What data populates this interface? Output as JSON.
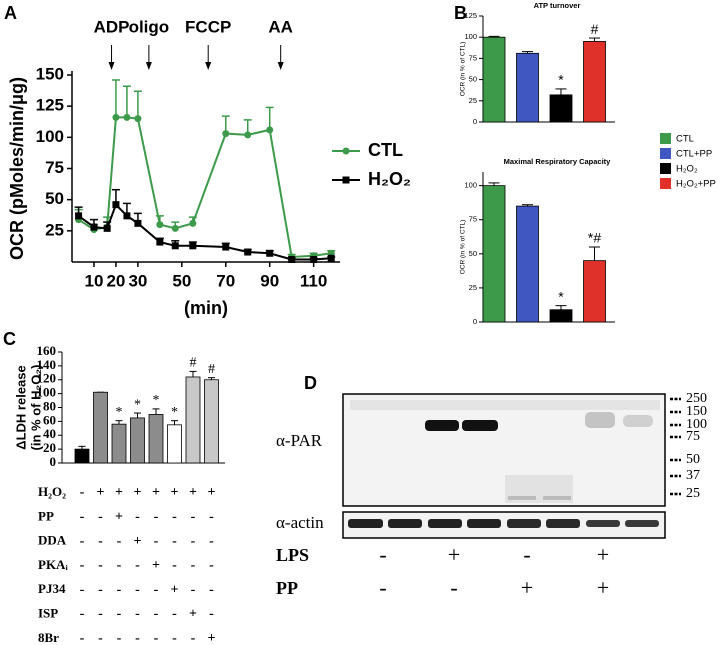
{
  "panel_labels": [
    "A",
    "B",
    "C",
    "D"
  ],
  "chart_data": [
    {
      "panel": "A",
      "type": "line",
      "ylabel": "OCR (pMoles/min/μg)",
      "xlabel": "(min)",
      "x": [
        3,
        10,
        16,
        20,
        25,
        30,
        40,
        47,
        55,
        70,
        80,
        90,
        100,
        110,
        118
      ],
      "xlim": [
        0,
        122
      ],
      "xticks": [
        10,
        20,
        30,
        50,
        70,
        90,
        110
      ],
      "ylim": [
        0,
        150
      ],
      "yticks": [
        25,
        50,
        75,
        100,
        125,
        150
      ],
      "series": [
        {
          "name": "CTL",
          "color": "#3d9a4a",
          "marker": "circle",
          "values": [
            34,
            26,
            28,
            116,
            116,
            115,
            30,
            27,
            31,
            103,
            102,
            106,
            4,
            5,
            7
          ],
          "errors": [
            8,
            4,
            8,
            30,
            25,
            22,
            7,
            5,
            5,
            14,
            12,
            18,
            2,
            2,
            2
          ]
        },
        {
          "name": "H₂O₂",
          "color": "#000000",
          "marker": "square",
          "values": [
            37,
            28,
            27,
            46,
            37,
            31,
            16,
            13,
            13,
            12,
            8,
            7,
            2,
            2,
            3
          ],
          "errors": [
            7,
            6,
            5,
            12,
            10,
            8,
            3,
            4,
            3,
            3,
            2,
            2,
            1,
            1,
            1
          ]
        }
      ],
      "annotations": [
        {
          "text": "ADP",
          "x": 18
        },
        {
          "text": "oligo",
          "x": 35
        },
        {
          "text": "FCCP",
          "x": 62
        },
        {
          "text": "AA",
          "x": 95
        }
      ],
      "legend": "right"
    },
    {
      "panel": "B",
      "type": "bar",
      "title": "ATP turnover",
      "ylabel": "OCR (in % of CTL)",
      "categories": [
        "CTL",
        "CTL+PP",
        "H₂O₂",
        "H₂O₂+PP"
      ],
      "colors": [
        "#3d9a4a",
        "#4057c2",
        "#000000",
        "#e0302a"
      ],
      "values": [
        100,
        81,
        32,
        95
      ],
      "errors": [
        1,
        2,
        7,
        4
      ],
      "ylim": [
        0,
        125
      ],
      "yticks": [
        0,
        25,
        50,
        75,
        100,
        125
      ],
      "annotations": [
        {
          "index": 2,
          "text": "*"
        },
        {
          "index": 3,
          "text": "#"
        }
      ]
    },
    {
      "panel": "B",
      "type": "bar",
      "title": "Maximal Respiratory Capacity",
      "ylabel": "OCR (in % of CTL)",
      "colors": [
        "#3d9a4a",
        "#4057c2",
        "#000000",
        "#e0302a"
      ],
      "values": [
        100,
        85,
        9,
        45
      ],
      "errors": [
        2,
        1,
        3,
        10
      ],
      "ylim": [
        0,
        110
      ],
      "yticks": [
        0,
        25,
        50,
        75,
        100
      ],
      "annotations": [
        {
          "index": 2,
          "text": "*"
        },
        {
          "index": 3,
          "text": "*#"
        }
      ]
    },
    {
      "panel": "C",
      "type": "bar",
      "ylabel": [
        "ΔLDH release",
        "(in % of H₂O₂)"
      ],
      "colors": [
        "#000000",
        "#8c8c8c",
        "#8c8c8c",
        "#8c8c8c",
        "#8c8c8c",
        "#ffffff",
        "#c8c8c8",
        "#c8c8c8"
      ],
      "values": [
        20,
        102,
        56,
        65,
        70,
        55,
        124,
        120
      ],
      "errors": [
        4,
        0,
        5,
        7,
        8,
        6,
        8,
        3
      ],
      "ylim": [
        0,
        160
      ],
      "yticks": [
        0,
        20,
        40,
        60,
        80,
        100,
        120,
        140,
        160
      ],
      "annotations": [
        {
          "index": 2,
          "text": "*"
        },
        {
          "index": 3,
          "text": "*"
        },
        {
          "index": 4,
          "text": "*"
        },
        {
          "index": 5,
          "text": "*"
        },
        {
          "index": 6,
          "text": "#"
        },
        {
          "index": 7,
          "text": "#"
        }
      ],
      "treatments": [
        {
          "label": "H₂O₂",
          "signs": [
            "-",
            "+",
            "+",
            "+",
            "+",
            "+",
            "+",
            "+"
          ]
        },
        {
          "label": "PP",
          "signs": [
            "-",
            "-",
            "+",
            "-",
            "-",
            "-",
            "-",
            "-"
          ]
        },
        {
          "label": "DDA",
          "signs": [
            "-",
            "-",
            "-",
            "+",
            "-",
            "-",
            "-",
            "-"
          ]
        },
        {
          "label": "PKAᵢ",
          "signs": [
            "-",
            "-",
            "-",
            "-",
            "+",
            "-",
            "-",
            "-"
          ]
        },
        {
          "label": "PJ34",
          "signs": [
            "-",
            "-",
            "-",
            "-",
            "-",
            "+",
            "-",
            "-"
          ]
        },
        {
          "label": "ISP",
          "signs": [
            "-",
            "-",
            "-",
            "-",
            "-",
            "-",
            "+",
            "-"
          ]
        },
        {
          "label": "8Br",
          "signs": [
            "-",
            "-",
            "-",
            "-",
            "-",
            "-",
            "-",
            "+"
          ]
        }
      ]
    }
  ],
  "blot": {
    "rows": [
      "α-PAR",
      "α-actin"
    ],
    "markers": [
      250,
      150,
      100,
      75,
      50,
      37,
      25
    ],
    "treatments": [
      {
        "label": "LPS",
        "signs": [
          "-",
          "+",
          "-",
          "+"
        ]
      },
      {
        "label": "PP",
        "signs": [
          "-",
          "-",
          "+",
          "+"
        ]
      }
    ]
  }
}
